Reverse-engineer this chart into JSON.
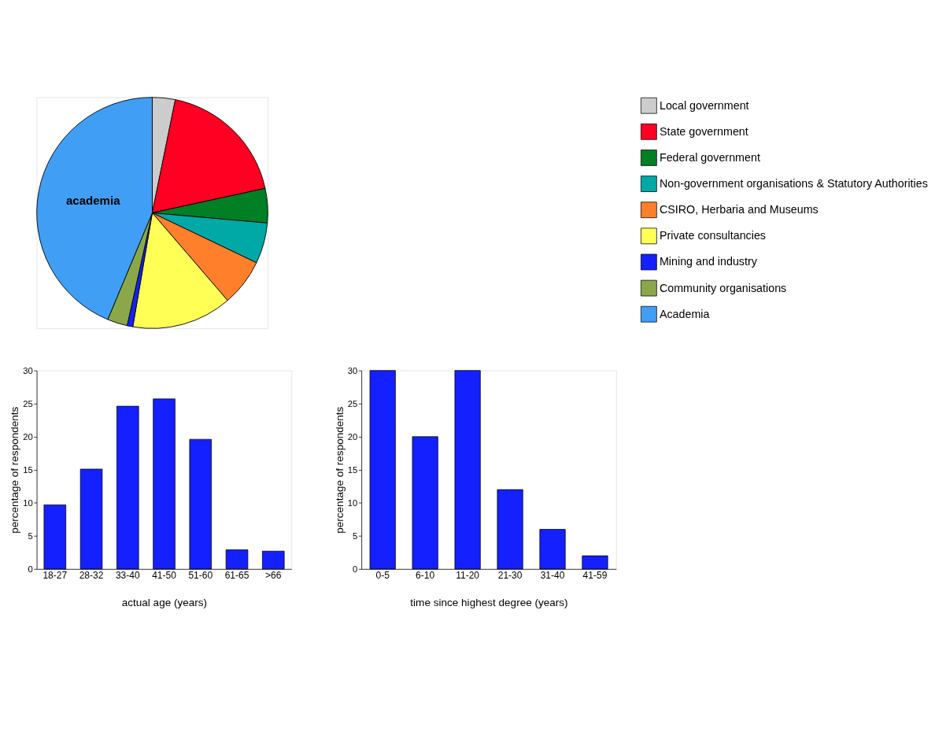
{
  "chart_data": [
    {
      "type": "pie",
      "categories": [
        "Local government",
        "State government",
        "Federal government",
        "Non-government organisations & Statutory Authorities",
        "CSIRO, Herbaria and Museums",
        "Private consultancies",
        "Mining and industry",
        "Community organisations",
        "Academia"
      ],
      "values": [
        3.2,
        18.4,
        4.8,
        5.7,
        6.6,
        14.0,
        0.8,
        2.8,
        43.7
      ],
      "colors": [
        "#cccccc",
        "#ff0022",
        "#007f25",
        "#00a9a6",
        "#ff7f2a",
        "#ffff55",
        "#1420ff",
        "#8aa84a",
        "#409ff5"
      ],
      "legend": "right",
      "annotations": [
        "academia"
      ]
    },
    {
      "type": "bar",
      "categories": [
        "18-27",
        "28-32",
        "33-40",
        "41-50",
        "51-60",
        "61-65",
        ">66"
      ],
      "values": [
        9.7,
        15.1,
        24.6,
        25.7,
        19.6,
        2.9,
        2.7
      ],
      "color": "#1420ff",
      "xlabel": "actual age (years)",
      "ylabel": "percentage of respondents",
      "ylim": [
        0,
        30
      ],
      "yticks": [
        0,
        5,
        10,
        15,
        20,
        25,
        30
      ],
      "grid": false
    },
    {
      "type": "bar",
      "categories": [
        "0-5",
        "6-10",
        "11-20",
        "21-30",
        "31-40",
        "41-59"
      ],
      "values": [
        30,
        20,
        30,
        12,
        6,
        2
      ],
      "color": "#1420ff",
      "xlabel": "time since highest degree (years)",
      "ylabel": "percentage of respondents",
      "ylim": [
        0,
        30
      ],
      "yticks": [
        0,
        5,
        10,
        15,
        20,
        25,
        30
      ],
      "grid": false
    }
  ]
}
